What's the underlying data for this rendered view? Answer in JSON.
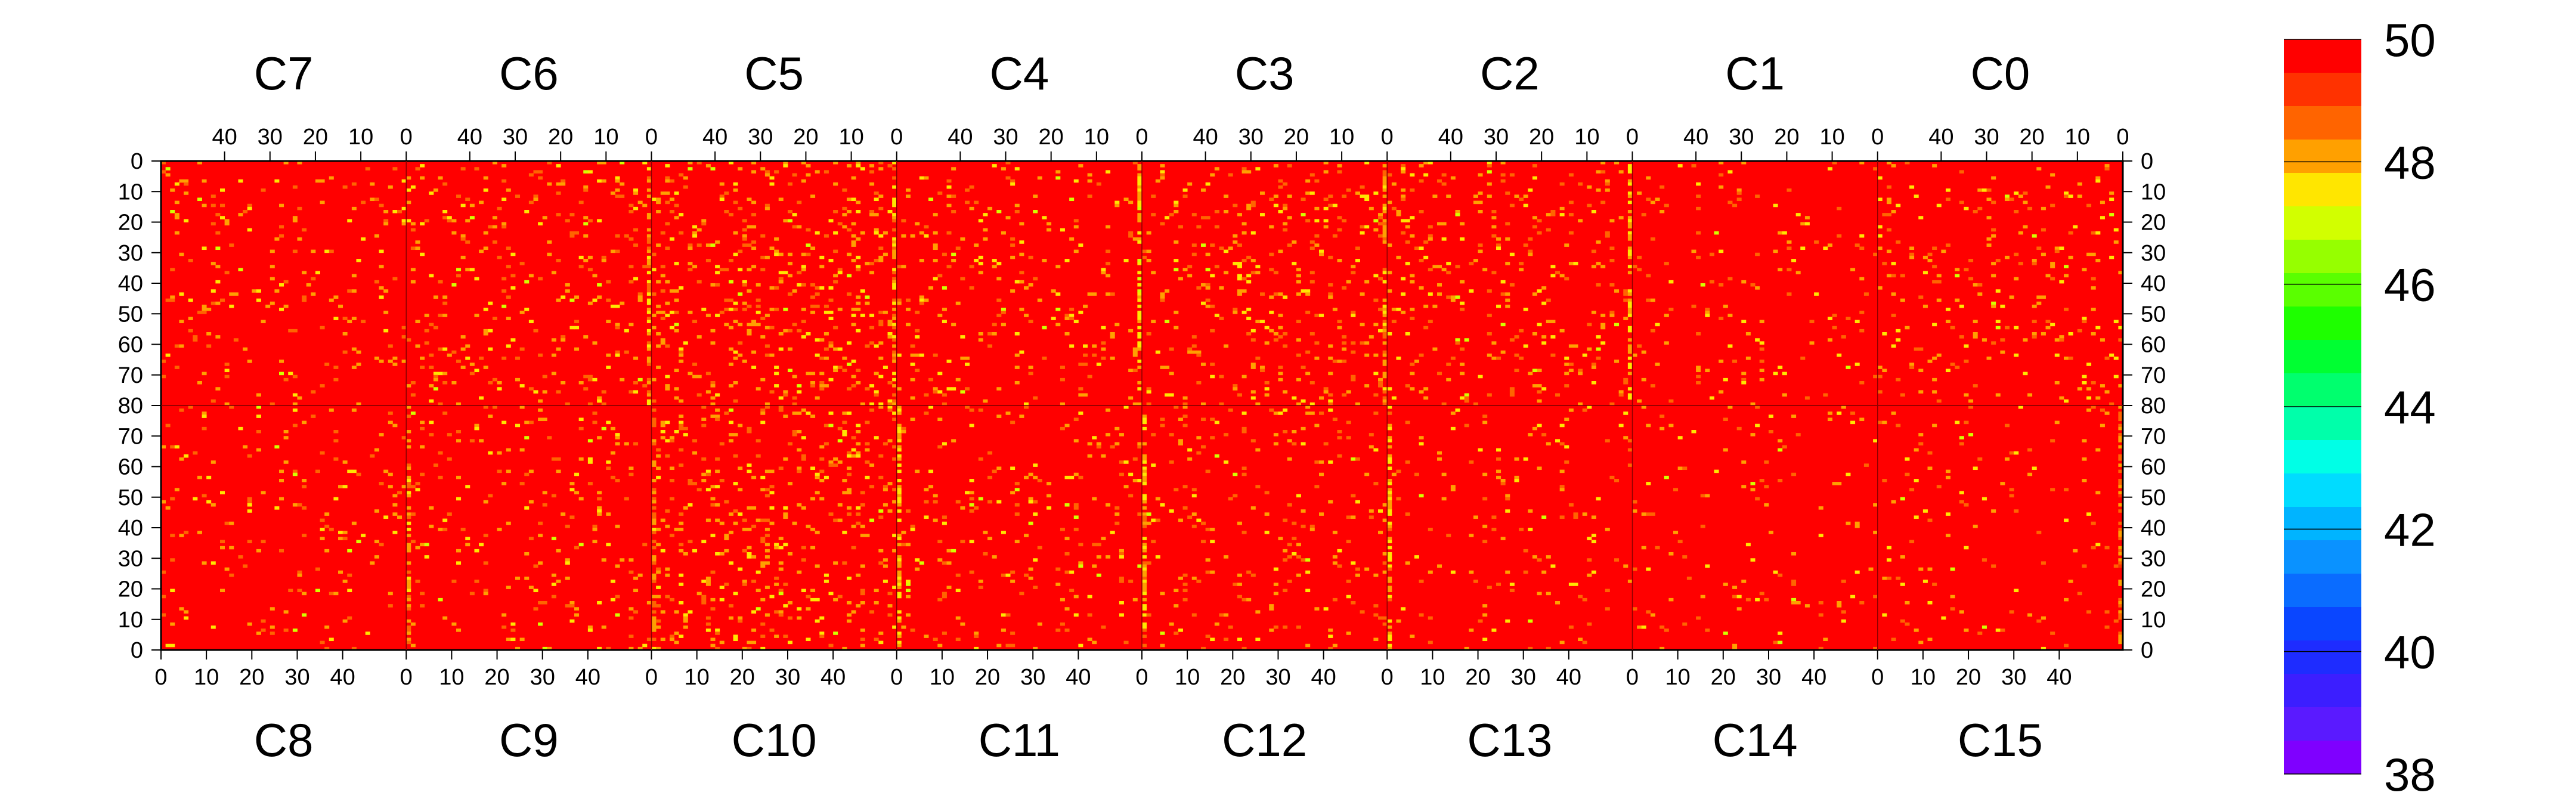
{
  "chart_data": {
    "type": "heatmap",
    "title": "",
    "xlabel": "",
    "ylabel": "",
    "color_scale": {
      "min": 38,
      "max": 50,
      "tick_labels": [
        "50",
        "48",
        "46",
        "44",
        "42",
        "40",
        "38"
      ],
      "levels": 20,
      "palette": [
        "#7f00ff",
        "#5a1aff",
        "#3c1eff",
        "#1e2cff",
        "#0a46ff",
        "#0a6cff",
        "#0a92ff",
        "#00b4ff",
        "#00dcff",
        "#00ffe6",
        "#00ffaa",
        "#00ff6e",
        "#00ff32",
        "#1eff00",
        "#5aff00",
        "#96ff00",
        "#d2ff00",
        "#ffe600",
        "#ffa000",
        "#ff6400",
        "#ff3200",
        "#ff0000"
      ]
    },
    "top_channels": [
      "C7",
      "C6",
      "C5",
      "C4",
      "C3",
      "C2",
      "C1",
      "C0"
    ],
    "bottom_channels": [
      "C8",
      "C9",
      "C10",
      "C11",
      "C12",
      "C13",
      "C14",
      "C15"
    ],
    "top_x_tick_labels": [
      "40",
      "30",
      "20",
      "10",
      "0"
    ],
    "top_x_tick_values": [
      40,
      30,
      20,
      10,
      0
    ],
    "bottom_x_tick_labels": [
      "0",
      "10",
      "20",
      "30",
      "40"
    ],
    "bottom_x_tick_values": [
      0,
      10,
      20,
      30,
      40
    ],
    "columns_per_channel": 54,
    "y_tick_labels": [
      "0",
      "10",
      "20",
      "30",
      "40",
      "50",
      "60",
      "70",
      "80",
      "70",
      "60",
      "50",
      "40",
      "30",
      "20",
      "10",
      "0"
    ],
    "y_range_top": [
      0,
      80
    ],
    "y_range_bottom": [
      80,
      0
    ],
    "background_value": 50,
    "hot_columns": [
      {
        "channel": "C6",
        "col": 53,
        "value": 48.6
      },
      {
        "channel": "C5",
        "col": 53,
        "value": 48.5
      },
      {
        "channel": "C4",
        "col": 53,
        "value": 48.2
      },
      {
        "channel": "C3",
        "col": 53,
        "value": 48.6
      },
      {
        "channel": "C2",
        "col": 53,
        "value": 48.3
      },
      {
        "channel": "C9",
        "col": 0,
        "value": 48.7
      },
      {
        "channel": "C10",
        "col": 0,
        "value": 48.8
      },
      {
        "channel": "C11",
        "col": 0,
        "value": 48.3
      },
      {
        "channel": "C12",
        "col": 0,
        "value": 48.5
      },
      {
        "channel": "C13",
        "col": 0,
        "value": 48.4
      },
      {
        "channel": "C15",
        "col": 53,
        "value": 48.9
      }
    ],
    "noise_density_by_channel": {
      "C7": 0.05,
      "C6": 0.07,
      "C5": 0.1,
      "C4": 0.06,
      "C3": 0.08,
      "C2": 0.07,
      "C1": 0.03,
      "C0": 0.06,
      "C8": 0.04,
      "C9": 0.05,
      "C10": 0.1,
      "C11": 0.05,
      "C12": 0.06,
      "C13": 0.04,
      "C14": 0.03,
      "C15": 0.03
    }
  }
}
